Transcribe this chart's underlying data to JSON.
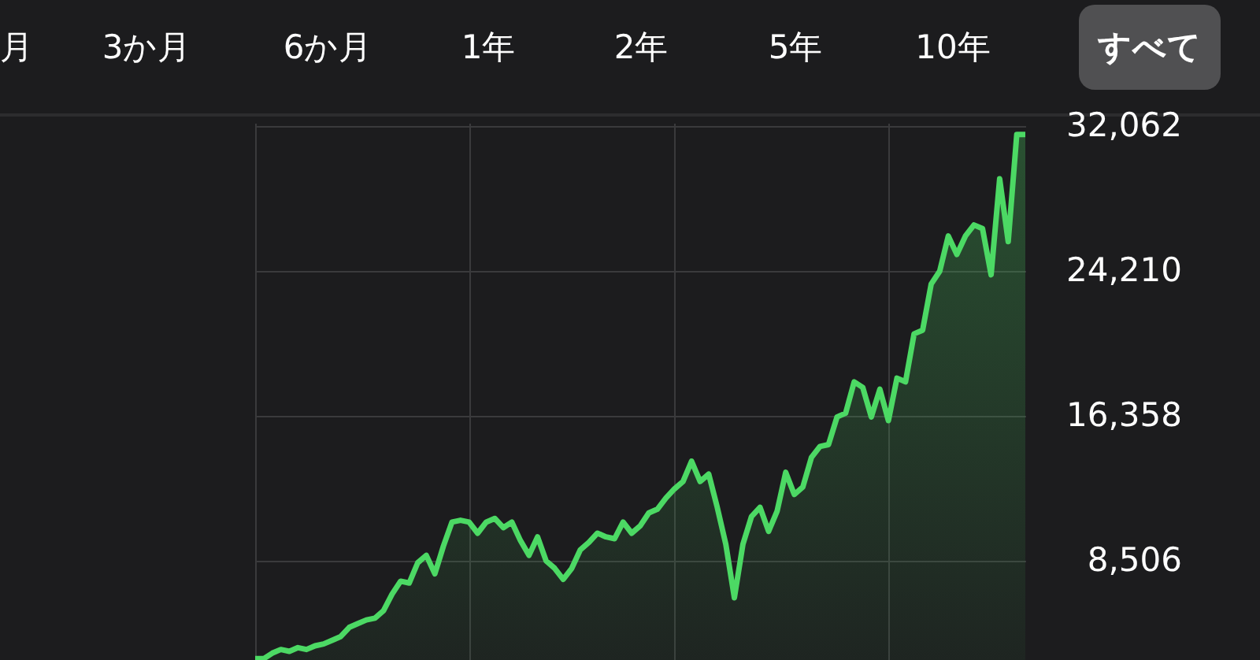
{
  "chart_data": {
    "type": "area",
    "annotations": [
      "月",
      "3か月",
      "6か月",
      "1年",
      "2年",
      "5年",
      "10年",
      "すべて"
    ],
    "categories": [
      null,
      null,
      null,
      null,
      null,
      null,
      null,
      null,
      null,
      null,
      null,
      null,
      null,
      null,
      null,
      null,
      null,
      null,
      null,
      null,
      null,
      null,
      null,
      null,
      null,
      null,
      null,
      null,
      null,
      null,
      null,
      null,
      null,
      null,
      null,
      null,
      null,
      null,
      null,
      null,
      null,
      null,
      null,
      null,
      null,
      null,
      null,
      null,
      null,
      null,
      null,
      null,
      null,
      null,
      null,
      null,
      null,
      null,
      null,
      null,
      null,
      null,
      null,
      null,
      null,
      null,
      null,
      null,
      null,
      null,
      null,
      null,
      null,
      null,
      null,
      null,
      null,
      null,
      null,
      null,
      null,
      null,
      null,
      null,
      null,
      null,
      null,
      null,
      null,
      null,
      null
    ],
    "series": [
      {
        "color": "#4cd964",
        "values": [
          3200,
          3200,
          3500,
          3700,
          3600,
          3800,
          3700,
          3900,
          4000,
          4200,
          4400,
          4900,
          5100,
          5300,
          5400,
          5800,
          6700,
          7400,
          7300,
          8400,
          8800,
          7800,
          9300,
          10600,
          10700,
          10600,
          10000,
          10600,
          10800,
          10300,
          10600,
          9600,
          8800,
          9800,
          8500,
          8100,
          7500,
          8100,
          9100,
          9500,
          10000,
          9800,
          9700,
          10600,
          10000,
          10400,
          11100,
          11300,
          11900,
          12400,
          12800,
          13900,
          12800,
          13200,
          11400,
          9400,
          6500,
          9400,
          10900,
          11400,
          10100,
          11200,
          13300,
          12100,
          12500,
          14100,
          14700,
          14800,
          16300,
          16500,
          18200,
          17900,
          16300,
          17800,
          16100,
          18400,
          18200,
          20800,
          21000,
          23500,
          24200,
          26100,
          25100,
          26100,
          26700,
          26500,
          24000,
          29200,
          25800,
          31600,
          31600
        ]
      }
    ],
    "ylim": [
      3130,
      32230
    ],
    "yticks": [
      {
        "value": 8506,
        "label": "8,506"
      },
      {
        "value": 16358,
        "label": "16,358"
      },
      {
        "value": 24210,
        "label": "24,210"
      },
      {
        "value": 32062,
        "label": "32,062"
      }
    ],
    "grid": true,
    "tick_labels": "y"
  }
}
